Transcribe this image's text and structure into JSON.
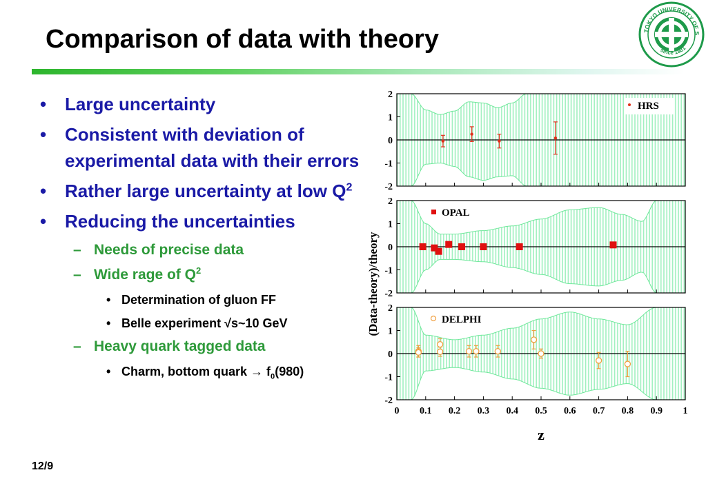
{
  "title": "Comparison of data with theory",
  "page_number": "12/9",
  "colors": {
    "title_bar_start": "#2db52d",
    "bullet_l1": "#1a1aa6",
    "bullet_l2": "#2e9a3a",
    "band": "#9ff0bf",
    "hrs": "#e0301a",
    "opal": "#e01010",
    "delphi": "#f0a040"
  },
  "logo": {
    "text": "TOKYO UNIVERSITY OF SCIENCE",
    "since": "since 1881"
  },
  "bullets": [
    {
      "level": 1,
      "text": "Large uncertainty"
    },
    {
      "level": 1,
      "text": "Consistent with deviation of experimental data with their errors"
    },
    {
      "level": 1,
      "text": "Rather large uncertainty at low Q",
      "sup": "2"
    },
    {
      "level": 1,
      "text": "Reducing the uncertainties"
    },
    {
      "level": 2,
      "text": "Needs of precise data"
    },
    {
      "level": 2,
      "text": "Wide rage of Q",
      "sup": "2"
    },
    {
      "level": 3,
      "text": "Determination of gluon FF"
    },
    {
      "level": 3,
      "text": "Belle experiment √s~10 GeV"
    },
    {
      "level": 2,
      "text": "Heavy quark tagged data"
    },
    {
      "level": 3,
      "text": "Charm, bottom quark → f",
      "sub": "0",
      "after": "(980)"
    }
  ],
  "chart_data": {
    "type": "scatter",
    "xlabel": "z",
    "ylabel": "(Data-theory)/theory",
    "xlim": [
      0,
      1
    ],
    "x_ticks": [
      "0",
      "0.1",
      "0.2",
      "0.3",
      "0.4",
      "0.5",
      "0.6",
      "0.7",
      "0.8",
      "0.9",
      "1"
    ],
    "y_ticks": [
      "2",
      "1",
      "0",
      "-1",
      "-2"
    ],
    "ylim": [
      -2,
      2
    ],
    "panels": [
      {
        "name": "HRS",
        "marker": "dot",
        "color": "#e0301a",
        "points": [
          {
            "x": 0.16,
            "y": -0.05,
            "err": 0.25
          },
          {
            "x": 0.26,
            "y": 0.25,
            "err": 0.32
          },
          {
            "x": 0.355,
            "y": -0.05,
            "err": 0.3
          },
          {
            "x": 0.55,
            "y": 0.08,
            "err": 0.7
          }
        ],
        "band_z": [
          0.0,
          0.05,
          0.1,
          0.15,
          0.2,
          0.25,
          0.3,
          0.35,
          0.4,
          0.45,
          1.0
        ],
        "band_hi": [
          2.0,
          2.0,
          1.3,
          1.1,
          1.25,
          1.65,
          1.6,
          1.4,
          1.6,
          2.0,
          2.0
        ],
        "band_lo": [
          -2.0,
          -2.0,
          -1.05,
          -1.0,
          -1.15,
          -1.6,
          -1.75,
          -1.6,
          -1.55,
          -2.0,
          -2.0
        ]
      },
      {
        "name": "OPAL",
        "marker": "square",
        "color": "#e01010",
        "points": [
          {
            "x": 0.09,
            "y": 0.0,
            "err": 0.1
          },
          {
            "x": 0.13,
            "y": -0.05,
            "err": 0.12
          },
          {
            "x": 0.145,
            "y": -0.2,
            "err": 0.12
          },
          {
            "x": 0.18,
            "y": 0.1,
            "err": 0.1
          },
          {
            "x": 0.225,
            "y": 0.0,
            "err": 0.1
          },
          {
            "x": 0.3,
            "y": 0.0,
            "err": 0.08
          },
          {
            "x": 0.425,
            "y": 0.0,
            "err": 0.08
          },
          {
            "x": 0.75,
            "y": 0.08,
            "err": 0.08
          }
        ],
        "band_z": [
          0.0,
          0.05,
          0.1,
          0.15,
          0.2,
          0.3,
          0.4,
          0.5,
          0.6,
          0.7,
          0.78,
          0.85,
          0.9,
          1.0
        ],
        "band_hi": [
          2.0,
          2.0,
          1.0,
          0.55,
          0.55,
          0.7,
          0.9,
          1.2,
          1.6,
          1.7,
          1.4,
          1.1,
          2.0,
          2.0
        ],
        "band_lo": [
          -2.0,
          -2.0,
          -1.0,
          -0.55,
          -0.55,
          -0.65,
          -0.9,
          -1.2,
          -1.6,
          -1.7,
          -1.45,
          -1.1,
          -2.0,
          -2.0
        ]
      },
      {
        "name": "DELPHI",
        "marker": "circle",
        "color": "#f0a040",
        "points": [
          {
            "x": 0.075,
            "y": 0.1,
            "err": 0.25
          },
          {
            "x": 0.075,
            "y": 0.05,
            "err": 0.2
          },
          {
            "x": 0.15,
            "y": 0.4,
            "err": 0.25
          },
          {
            "x": 0.15,
            "y": 0.08,
            "err": 0.2
          },
          {
            "x": 0.25,
            "y": 0.1,
            "err": 0.25
          },
          {
            "x": 0.275,
            "y": 0.1,
            "err": 0.25
          },
          {
            "x": 0.35,
            "y": 0.1,
            "err": 0.25
          },
          {
            "x": 0.475,
            "y": 0.6,
            "err": 0.4
          },
          {
            "x": 0.5,
            "y": 0.0,
            "err": 0.2
          },
          {
            "x": 0.7,
            "y": -0.3,
            "err": 0.35
          },
          {
            "x": 0.8,
            "y": -0.45,
            "err": 0.55
          }
        ],
        "band_z": [
          0.0,
          0.05,
          0.1,
          0.2,
          0.3,
          0.4,
          0.5,
          0.6,
          0.7,
          0.8,
          0.9,
          1.0
        ],
        "band_hi": [
          2.0,
          2.0,
          0.8,
          0.6,
          0.8,
          1.1,
          1.5,
          1.8,
          1.5,
          1.25,
          2.0,
          2.0
        ],
        "band_lo": [
          -2.0,
          -2.0,
          -0.75,
          -0.6,
          -0.8,
          -1.1,
          -1.5,
          -1.8,
          -1.55,
          -1.3,
          -2.0,
          -2.0
        ]
      }
    ]
  }
}
